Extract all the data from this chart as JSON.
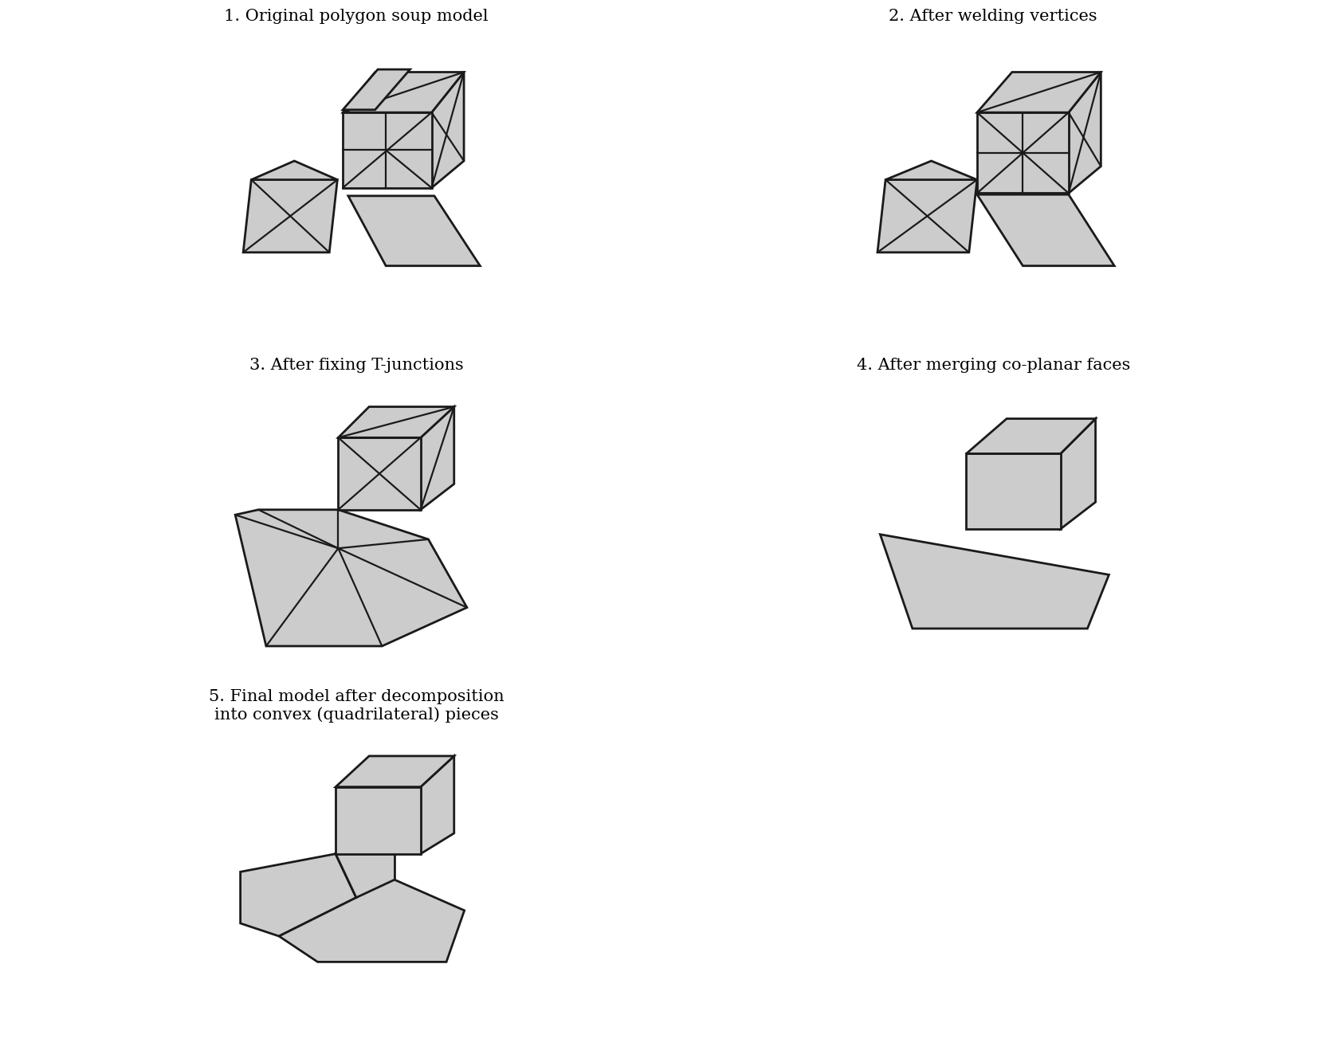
{
  "background_color": "#ffffff",
  "face_fill": "#cccccc",
  "face_edge": "#1a1a1a",
  "edge_lw": 2.0,
  "inner_lw": 1.6,
  "titles": [
    "1. Original polygon soup model",
    "2. After welding vertices",
    "3. After fixing T-junctions",
    "4. After merging co-planar faces",
    "5. Final model after decomposition\ninto convex (quadrilateral) pieces"
  ],
  "title_fontsize": 15,
  "title_ha": "center"
}
